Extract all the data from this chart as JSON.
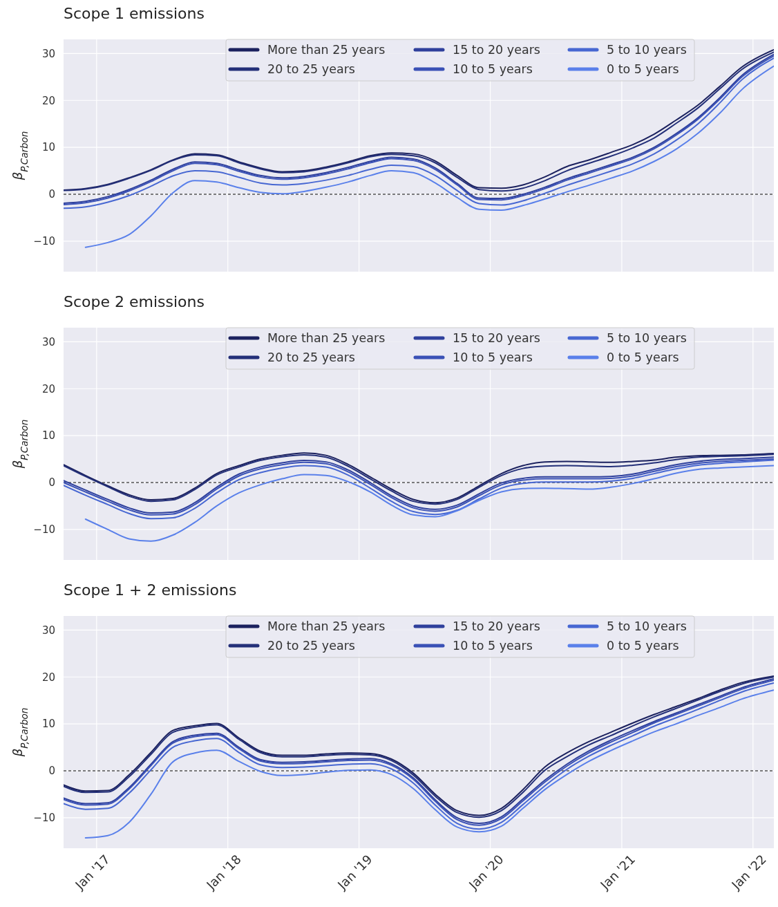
{
  "chart_data": [
    {
      "type": "line",
      "title": "Scope 1 emissions",
      "ylabel": "β$_{P,Carbon}$",
      "legend": "top",
      "grid": true,
      "tick_labels": "y",
      "line_style": "solid",
      "marker": "none",
      "x": [
        "2016-10-01",
        "2016-12-01",
        "2017-02-01",
        "2017-04-01",
        "2017-06-01",
        "2017-08-01",
        "2017-10-01",
        "2017-12-01",
        "2018-02-01",
        "2018-04-01",
        "2018-06-01",
        "2018-08-01",
        "2018-10-01",
        "2018-12-01",
        "2019-02-01",
        "2019-04-01",
        "2019-06-01",
        "2019-08-01",
        "2019-10-01",
        "2019-12-01",
        "2020-02-01",
        "2020-04-01",
        "2020-06-01",
        "2020-08-01",
        "2020-10-01",
        "2020-12-01",
        "2021-02-01",
        "2021-04-01",
        "2021-06-01",
        "2021-08-01",
        "2021-10-01",
        "2021-12-01",
        "2022-02-28"
      ],
      "xlim": [
        "2016-10-01",
        "2022-02-28"
      ],
      "xticks": [
        {
          "value": "2017-01-01",
          "label": null
        },
        {
          "value": "2018-01-01",
          "label": null
        },
        {
          "value": "2019-01-01",
          "label": null
        },
        {
          "value": "2020-01-01",
          "label": null
        },
        {
          "value": "2021-01-01",
          "label": null
        },
        {
          "value": "2022-01-01",
          "label": null
        }
      ],
      "ylim": [
        -16.5,
        33
      ],
      "yticks": [
        -10,
        0,
        10,
        20,
        30
      ],
      "ref_lines": [
        {
          "axis": "y",
          "value": 0,
          "color": "#000000",
          "line_style": "dashed"
        }
      ],
      "series": [
        {
          "name": "More than 25 years",
          "color": "#1b215e",
          "values": [
            0.9,
            1.2,
            2.1,
            3.5,
            5.2,
            7.3,
            8.6,
            8.4,
            6.9,
            5.6,
            4.8,
            5.0,
            5.8,
            6.9,
            8.2,
            8.8,
            8.6,
            7.1,
            4.0,
            1.4,
            1.3,
            2.0,
            3.7,
            5.9,
            7.3,
            8.9,
            10.6,
            12.8,
            15.8,
            19.0,
            23.0,
            27.1,
            30.8
          ]
        },
        {
          "name": "20 to 25 years",
          "color": "#243079",
          "values": [
            0.8,
            1.1,
            2.0,
            3.4,
            5.1,
            7.2,
            8.4,
            8.2,
            6.7,
            5.4,
            4.6,
            4.8,
            5.6,
            6.7,
            8.0,
            8.5,
            8.2,
            6.7,
            3.6,
            1.0,
            0.7,
            1.3,
            2.9,
            5.0,
            6.6,
            8.1,
            9.9,
            12.0,
            15.1,
            18.4,
            22.5,
            26.6,
            30.3
          ]
        },
        {
          "name": "15 to 20 years",
          "color": "#2f409c",
          "values": [
            -1.9,
            -1.5,
            -0.5,
            1.0,
            3.0,
            5.3,
            6.9,
            6.6,
            5.2,
            4.0,
            3.5,
            3.8,
            4.6,
            5.7,
            7.0,
            7.9,
            7.5,
            5.6,
            2.3,
            -0.8,
            -0.9,
            0.0,
            1.5,
            3.3,
            4.8,
            6.3,
            7.9,
            10.0,
            12.9,
            16.3,
            20.6,
            25.3,
            29.8
          ]
        },
        {
          "name": "10 to 5 years",
          "color": "#3a51b6",
          "values": [
            -2.2,
            -1.8,
            -0.8,
            0.7,
            2.7,
            5.0,
            6.6,
            6.3,
            4.9,
            3.7,
            3.2,
            3.5,
            4.3,
            5.4,
            6.7,
            7.6,
            7.2,
            5.3,
            2.0,
            -1.1,
            -1.2,
            -0.3,
            1.2,
            3.0,
            4.5,
            6.0,
            7.6,
            9.7,
            12.6,
            16.0,
            20.3,
            25.0,
            29.5
          ]
        },
        {
          "name": "5 to 10 years",
          "color": "#4767d2",
          "values": [
            -3.0,
            -2.7,
            -1.7,
            -0.3,
            1.7,
            3.9,
            5.0,
            4.8,
            3.6,
            2.4,
            2.0,
            2.3,
            3.0,
            4.0,
            5.3,
            6.2,
            5.9,
            4.0,
            0.8,
            -2.0,
            -2.3,
            -1.4,
            0.2,
            1.9,
            3.4,
            4.9,
            6.5,
            8.6,
            11.5,
            15.0,
            19.5,
            24.4,
            29.0
          ]
        },
        {
          "name": "0 to 5 years",
          "color": "#5a80ea",
          "values": [
            null,
            -11.3,
            -10.3,
            -8.6,
            -4.6,
            0.3,
            2.9,
            2.6,
            1.4,
            0.4,
            0.1,
            0.6,
            1.5,
            2.6,
            4.0,
            5.0,
            4.6,
            2.4,
            -0.7,
            -3.2,
            -3.4,
            -2.4,
            -1.0,
            0.5,
            1.9,
            3.4,
            5.0,
            7.0,
            9.6,
            13.0,
            17.3,
            22.3,
            27.3
          ]
        }
      ]
    },
    {
      "type": "line",
      "title": "Scope 2 emissions",
      "ylabel": "β$_{P,Carbon}$",
      "legend": "top",
      "grid": true,
      "tick_labels": "y",
      "line_style": "solid",
      "marker": "none",
      "x": [
        "2016-10-01",
        "2016-12-01",
        "2017-02-01",
        "2017-04-01",
        "2017-06-01",
        "2017-08-01",
        "2017-10-01",
        "2017-12-01",
        "2018-02-01",
        "2018-04-01",
        "2018-06-01",
        "2018-08-01",
        "2018-10-01",
        "2018-12-01",
        "2019-02-01",
        "2019-04-01",
        "2019-06-01",
        "2019-08-01",
        "2019-10-01",
        "2019-12-01",
        "2020-02-01",
        "2020-04-01",
        "2020-06-01",
        "2020-08-01",
        "2020-10-01",
        "2020-12-01",
        "2021-02-01",
        "2021-04-01",
        "2021-06-01",
        "2021-08-01",
        "2021-10-01",
        "2021-12-01",
        "2022-02-28"
      ],
      "xlim": [
        "2016-10-01",
        "2022-02-28"
      ],
      "xticks": [
        {
          "value": "2017-01-01",
          "label": null
        },
        {
          "value": "2018-01-01",
          "label": null
        },
        {
          "value": "2019-01-01",
          "label": null
        },
        {
          "value": "2020-01-01",
          "label": null
        },
        {
          "value": "2021-01-01",
          "label": null
        },
        {
          "value": "2022-01-01",
          "label": null
        }
      ],
      "ylim": [
        -16.5,
        33
      ],
      "yticks": [
        -10,
        0,
        10,
        20,
        30
      ],
      "ref_lines": [
        {
          "axis": "y",
          "value": 0,
          "color": "#000000",
          "line_style": "dashed"
        }
      ],
      "series": [
        {
          "name": "More than 25 years",
          "color": "#1b215e",
          "values": [
            3.8,
            1.5,
            -0.7,
            -2.6,
            -3.7,
            -3.4,
            -1.2,
            1.9,
            3.6,
            5.0,
            5.8,
            6.3,
            5.8,
            3.9,
            1.2,
            -1.4,
            -3.6,
            -4.3,
            -3.3,
            -0.7,
            1.9,
            3.6,
            4.4,
            4.5,
            4.4,
            4.3,
            4.5,
            4.8,
            5.4,
            5.7,
            5.8,
            5.9,
            6.2
          ]
        },
        {
          "name": "20 to 25 years",
          "color": "#243079",
          "values": [
            3.6,
            1.3,
            -0.9,
            -2.9,
            -4.0,
            -3.7,
            -1.5,
            1.6,
            3.3,
            4.7,
            5.5,
            5.9,
            5.4,
            3.5,
            0.8,
            -1.8,
            -4.0,
            -4.6,
            -3.6,
            -1.0,
            1.5,
            3.0,
            3.5,
            3.6,
            3.5,
            3.4,
            3.7,
            4.2,
            4.9,
            5.4,
            5.6,
            5.7,
            6.0
          ]
        },
        {
          "name": "15 to 20 years",
          "color": "#2f409c",
          "values": [
            0.4,
            -1.6,
            -3.6,
            -5.4,
            -6.5,
            -6.3,
            -4.3,
            -1.0,
            1.8,
            3.3,
            4.2,
            4.7,
            4.4,
            2.7,
            0.0,
            -2.8,
            -5.0,
            -5.7,
            -4.8,
            -2.4,
            -0.1,
            0.9,
            1.2,
            1.2,
            1.2,
            1.3,
            1.8,
            2.8,
            3.8,
            4.5,
            4.9,
            5.1,
            5.4
          ]
        },
        {
          "name": "10 to 5 years",
          "color": "#3a51b6",
          "values": [
            0.0,
            -2.0,
            -4.0,
            -5.8,
            -6.9,
            -6.7,
            -4.7,
            -1.4,
            1.4,
            2.9,
            3.8,
            4.3,
            4.0,
            2.3,
            -0.4,
            -3.2,
            -5.4,
            -6.1,
            -5.2,
            -2.8,
            -0.5,
            0.5,
            0.8,
            0.8,
            0.8,
            0.9,
            1.4,
            2.4,
            3.4,
            4.1,
            4.5,
            4.7,
            5.0
          ]
        },
        {
          "name": "5 to 10 years",
          "color": "#4767d2",
          "values": [
            -0.6,
            -2.7,
            -4.7,
            -6.6,
            -7.7,
            -7.5,
            -5.5,
            -2.2,
            0.6,
            2.1,
            3.1,
            3.6,
            3.3,
            1.6,
            -1.2,
            -4.0,
            -6.2,
            -6.8,
            -5.9,
            -3.5,
            -1.2,
            -0.2,
            0.1,
            0.1,
            0.1,
            0.3,
            0.9,
            1.9,
            2.9,
            3.7,
            4.1,
            4.4,
            4.8
          ]
        },
        {
          "name": "0 to 5 years",
          "color": "#5a80ea",
          "values": [
            null,
            -7.8,
            -10.0,
            -12.0,
            -12.5,
            -11.2,
            -8.5,
            -5.0,
            -2.2,
            -0.5,
            0.8,
            1.7,
            1.5,
            0.2,
            -2.0,
            -4.8,
            -6.9,
            -7.3,
            -6.0,
            -3.8,
            -2.0,
            -1.3,
            -1.2,
            -1.3,
            -1.4,
            -1.0,
            -0.2,
            0.8,
            2.0,
            2.8,
            3.1,
            3.3,
            3.6
          ]
        }
      ]
    },
    {
      "type": "line",
      "title": "Scope 1 + 2 emissions",
      "ylabel": "β$_{P,Carbon}$",
      "legend": "top",
      "grid": true,
      "line_style": "solid",
      "marker": "none",
      "x": [
        "2016-10-01",
        "2016-12-01",
        "2017-02-01",
        "2017-04-01",
        "2017-06-01",
        "2017-08-01",
        "2017-10-01",
        "2017-12-01",
        "2018-02-01",
        "2018-04-01",
        "2018-06-01",
        "2018-08-01",
        "2018-10-01",
        "2018-12-01",
        "2019-02-01",
        "2019-04-01",
        "2019-06-01",
        "2019-08-01",
        "2019-10-01",
        "2019-12-01",
        "2020-02-01",
        "2020-04-01",
        "2020-06-01",
        "2020-08-01",
        "2020-10-01",
        "2020-12-01",
        "2021-02-01",
        "2021-04-01",
        "2021-06-01",
        "2021-08-01",
        "2021-10-01",
        "2021-12-01",
        "2022-02-28"
      ],
      "xlim": [
        "2016-10-01",
        "2022-02-28"
      ],
      "xticks": [
        {
          "value": "2017-01-01",
          "label": "Jan '17"
        },
        {
          "value": "2018-01-01",
          "label": "Jan '18"
        },
        {
          "value": "2019-01-01",
          "label": "Jan '19"
        },
        {
          "value": "2020-01-01",
          "label": "Jan '20"
        },
        {
          "value": "2021-01-01",
          "label": "Jan '21"
        },
        {
          "value": "2022-01-01",
          "label": "Jan '22"
        }
      ],
      "ylim": [
        -16.5,
        33
      ],
      "yticks": [
        -10,
        0,
        10,
        20,
        30
      ],
      "ref_lines": [
        {
          "axis": "y",
          "value": 0,
          "color": "#000000",
          "line_style": "dashed"
        }
      ],
      "series": [
        {
          "name": "More than 25 years",
          "color": "#1b215e",
          "values": [
            -3.0,
            -4.3,
            -4.2,
            -0.9,
            3.9,
            8.6,
            9.6,
            10.1,
            7.0,
            4.2,
            3.3,
            3.3,
            3.6,
            3.8,
            3.7,
            2.5,
            -0.5,
            -5.0,
            -8.5,
            -9.5,
            -8.0,
            -4.0,
            0.8,
            3.8,
            6.2,
            8.2,
            10.2,
            12.0,
            13.7,
            15.4,
            17.2,
            18.8,
            20.2
          ]
        },
        {
          "name": "20 to 25 years",
          "color": "#243079",
          "values": [
            -3.3,
            -4.6,
            -4.5,
            -1.3,
            3.5,
            8.2,
            9.3,
            9.8,
            6.7,
            3.9,
            3.0,
            3.0,
            3.3,
            3.5,
            3.4,
            2.2,
            -0.9,
            -5.4,
            -8.9,
            -9.9,
            -8.5,
            -4.6,
            0.1,
            3.0,
            5.5,
            7.5,
            9.6,
            11.5,
            13.3,
            15.1,
            16.9,
            18.5,
            20.0
          ]
        },
        {
          "name": "15 to 20 years",
          "color": "#2f409c",
          "values": [
            -5.8,
            -7.0,
            -6.8,
            -3.6,
            1.4,
            6.2,
            7.6,
            8.0,
            5.0,
            2.4,
            1.8,
            1.9,
            2.2,
            2.5,
            2.6,
            1.5,
            -1.5,
            -6.2,
            -10.0,
            -11.2,
            -9.8,
            -6.0,
            -2.0,
            1.4,
            4.2,
            6.5,
            8.6,
            10.5,
            12.3,
            14.1,
            15.9,
            17.7,
            19.6
          ]
        },
        {
          "name": "10 to 5 years",
          "color": "#3a51b6",
          "values": [
            -6.1,
            -7.3,
            -7.1,
            -3.9,
            1.1,
            5.9,
            7.3,
            7.7,
            4.7,
            2.1,
            1.5,
            1.6,
            1.9,
            2.2,
            2.3,
            1.2,
            -1.8,
            -6.5,
            -10.4,
            -11.6,
            -10.2,
            -6.4,
            -2.4,
            1.0,
            3.8,
            6.1,
            8.2,
            10.2,
            12.0,
            13.8,
            15.6,
            17.4,
            19.3
          ]
        },
        {
          "name": "5 to 10 years",
          "color": "#4767d2",
          "values": [
            -7.0,
            -8.2,
            -8.0,
            -4.8,
            0.2,
            5.0,
            6.4,
            6.9,
            3.9,
            1.3,
            0.7,
            0.8,
            1.1,
            1.4,
            1.5,
            0.4,
            -2.6,
            -7.3,
            -11.2,
            -12.4,
            -11.0,
            -7.2,
            -3.2,
            0.3,
            3.1,
            5.4,
            7.5,
            9.5,
            11.3,
            13.1,
            15.0,
            16.8,
            18.7
          ]
        },
        {
          "name": "0 to 5 years",
          "color": "#5a80ea",
          "values": [
            null,
            -14.3,
            -13.8,
            -11.0,
            -5.0,
            1.9,
            3.8,
            4.4,
            2.0,
            -0.1,
            -1.0,
            -0.8,
            -0.3,
            0.1,
            0.2,
            -0.8,
            -3.8,
            -8.3,
            -12.0,
            -13.0,
            -11.8,
            -8.0,
            -4.0,
            -0.8,
            2.0,
            4.3,
            6.4,
            8.3,
            10.0,
            11.8,
            13.5,
            15.3,
            17.2
          ]
        }
      ]
    }
  ]
}
